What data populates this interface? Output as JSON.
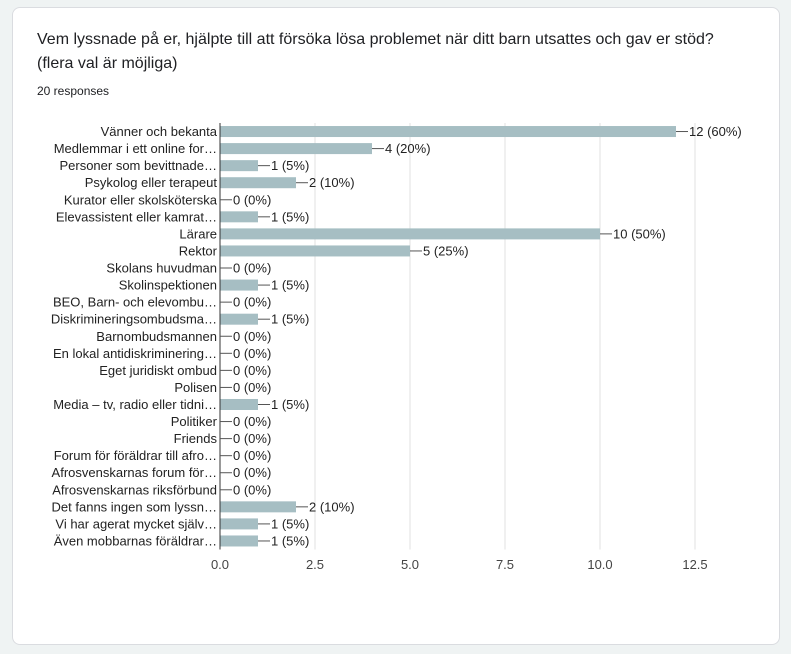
{
  "question": {
    "title": "Vem lyssnade på er, hjälpte till att försöka lösa problemet när ditt barn utsattes och gav er stöd? (flera val är möjliga)",
    "responses": "20 responses"
  },
  "colors": {
    "bar": "#a6bec3",
    "grid": "#e0e0e0",
    "axis": "#333333"
  },
  "chart_data": {
    "type": "bar",
    "orientation": "horizontal",
    "categories": [
      "Vänner och bekanta",
      "Medlemmar i ett online for…",
      "Personer som bevittnade…",
      "Psykolog eller terapeut",
      "Kurator eller skolsköterska",
      "Elevassistent eller kamrat…",
      "Lärare",
      "Rektor",
      "Skolans huvudman",
      "Skolinspektionen",
      "BEO, Barn- och elevombu…",
      "Diskrimineringsombudsma…",
      "Barnombudsmannen",
      "En lokal antidiskriminering…",
      "Eget juridiskt ombud",
      "Polisen",
      "Media – tv, radio eller tidni…",
      "Politiker",
      "Friends",
      "Forum för föräldrar till afro…",
      "Afrosvenskarnas forum för…",
      "Afrosvenskarnas riksförbund",
      "Det fanns ingen som lyssn…",
      "Vi har agerat mycket själv…",
      "Även mobbarnas föräldrar…"
    ],
    "values": [
      12,
      4,
      1,
      2,
      0,
      1,
      10,
      5,
      0,
      1,
      0,
      1,
      0,
      0,
      0,
      0,
      1,
      0,
      0,
      0,
      0,
      0,
      2,
      1,
      1
    ],
    "data_labels": [
      "12 (60%)",
      "4 (20%)",
      "1 (5%)",
      "2 (10%)",
      "0 (0%)",
      "1 (5%)",
      "10 (50%)",
      "5 (25%)",
      "0 (0%)",
      "1 (5%)",
      "0 (0%)",
      "1 (5%)",
      "0 (0%)",
      "0 (0%)",
      "0 (0%)",
      "0 (0%)",
      "1 (5%)",
      "0 (0%)",
      "0 (0%)",
      "0 (0%)",
      "0 (0%)",
      "0 (0%)",
      "2 (10%)",
      "1 (5%)",
      "1 (5%)"
    ],
    "xticks": [
      0,
      2.5,
      5,
      7.5,
      10,
      12.5
    ],
    "xtick_labels": [
      "0.0",
      "2.5",
      "5.0",
      "7.5",
      "10.0",
      "12.5"
    ],
    "xlim": [
      0,
      13
    ],
    "grid": true,
    "title": "",
    "xlabel": "",
    "ylabel": ""
  }
}
